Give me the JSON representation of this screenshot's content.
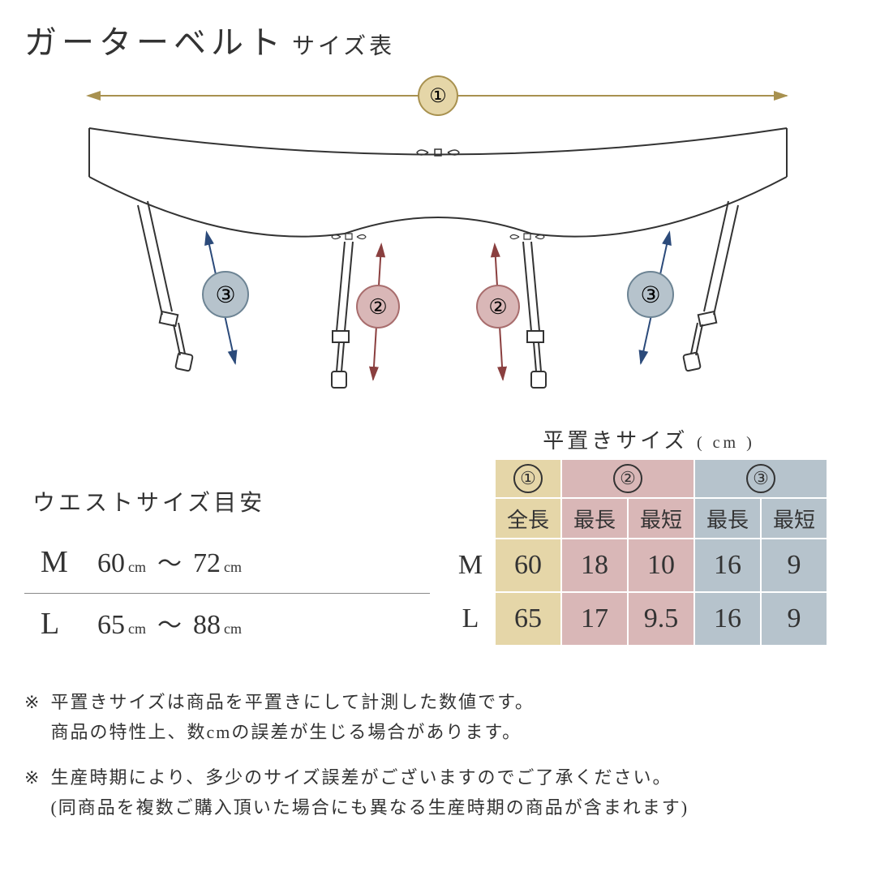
{
  "title": {
    "main": "ガーターベルト",
    "sub": "サイズ表"
  },
  "badges": {
    "one": {
      "num": "①",
      "fill": "#e5d6a8",
      "stroke": "#a8914f"
    },
    "two": {
      "num": "②",
      "fill": "#d9b7b7",
      "stroke": "#a86d6d"
    },
    "three": {
      "num": "③",
      "fill": "#b6c3cc",
      "stroke": "#6d8494"
    }
  },
  "diagram": {
    "arrow1_color": "#a8914f",
    "arrow2_color": "#8a3f3f",
    "arrow3_color": "#2b4a7a",
    "line_color": "#333333"
  },
  "waist": {
    "title": "ウエストサイズ目安",
    "rows": [
      {
        "size": "M",
        "from": "60",
        "to": "72"
      },
      {
        "size": "L",
        "from": "65",
        "to": "88"
      }
    ],
    "cm": "cm",
    "tilde": "〜"
  },
  "flat": {
    "title": "平置きサイズ",
    "unit": "( cm )",
    "colors": {
      "c1": "#e5d6a8",
      "c2": "#d9b7b7",
      "c3": "#b6c3cc"
    },
    "labels": {
      "full": "全長",
      "max": "最長",
      "min": "最短"
    },
    "rows": [
      {
        "size": "M",
        "v": [
          "60",
          "18",
          "10",
          "16",
          "9"
        ]
      },
      {
        "size": "L",
        "v": [
          "65",
          "17",
          "9.5",
          "16",
          "9"
        ]
      }
    ]
  },
  "notes": [
    "平置きサイズは商品を平置きにして計測した数値です。\n商品の特性上、数cmの誤差が生じる場合があります。",
    "生産時期により、多少のサイズ誤差がございますのでご了承ください。\n(同商品を複数ご購入頂いた場合にも異なる生産時期の商品が含まれます)"
  ],
  "note_mark": "※"
}
